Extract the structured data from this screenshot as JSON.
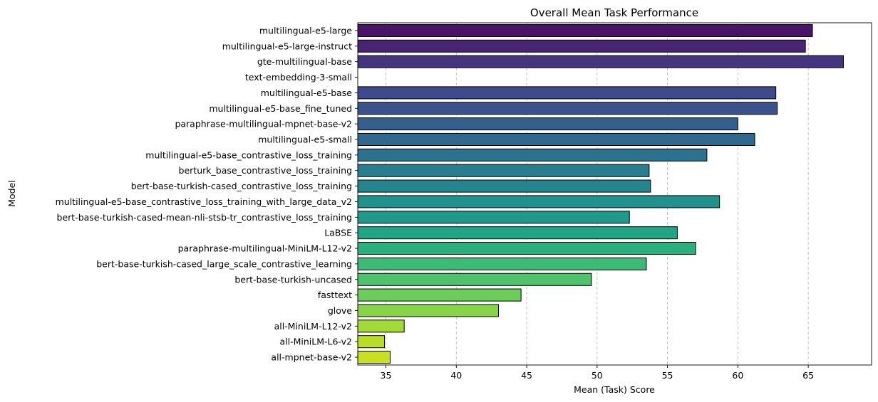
{
  "chart_data": {
    "type": "bar",
    "orientation": "horizontal",
    "title": "Overall Mean Task Performance",
    "xlabel": "Mean (Task) Score",
    "ylabel": "Model",
    "xlim": [
      33,
      69.5
    ],
    "xticks": [
      35,
      40,
      45,
      50,
      55,
      60,
      65
    ],
    "grid": "x",
    "colormap": "viridis",
    "categories": [
      "multilingual-e5-large",
      "multilingual-e5-large-instruct",
      "gte-multilingual-base",
      "text-embedding-3-small",
      "multilingual-e5-base",
      "multilingual-e5-base_fine_tuned",
      "paraphrase-multilingual-mpnet-base-v2",
      "multilingual-e5-small",
      "multilingual-e5-base_contrastive_loss_training",
      "berturk_base_contrastive_loss_training",
      "bert-base-turkish-cased_contrastive_loss_training",
      "multilingual-e5-base_contrastive_loss_training_with_large_data_v2",
      "bert-base-turkish-cased-mean-nli-stsb-tr_contrastive_loss_training",
      "LaBSE",
      "paraphrase-multilingual-MiniLM-L12-v2",
      "bert-base-turkish-cased_large_scale_contrastive_learning",
      "bert-base-turkish-uncased",
      "fasttext",
      "glove",
      "all-MiniLM-L12-v2",
      "all-MiniLM-L6-v2",
      "all-mpnet-base-v2"
    ],
    "values": [
      65.3,
      64.8,
      67.5,
      null,
      62.7,
      62.8,
      60.0,
      61.2,
      57.8,
      53.7,
      53.8,
      58.7,
      52.3,
      55.7,
      57.0,
      53.5,
      49.6,
      44.6,
      43.0,
      36.3,
      34.9,
      35.3
    ],
    "colors": [
      "#481467",
      "#482475",
      "#453581",
      "#453882",
      "#3e4a89",
      "#3b528b",
      "#355f8d",
      "#31688e",
      "#2c728e",
      "#287d8e",
      "#25858e",
      "#21918c",
      "#1f9a8a",
      "#21a685",
      "#2ab07f",
      "#3bbb75",
      "#4ec36b",
      "#6ccd5a",
      "#86d549",
      "#a2da37",
      "#bade28",
      "#c8e020"
    ]
  }
}
